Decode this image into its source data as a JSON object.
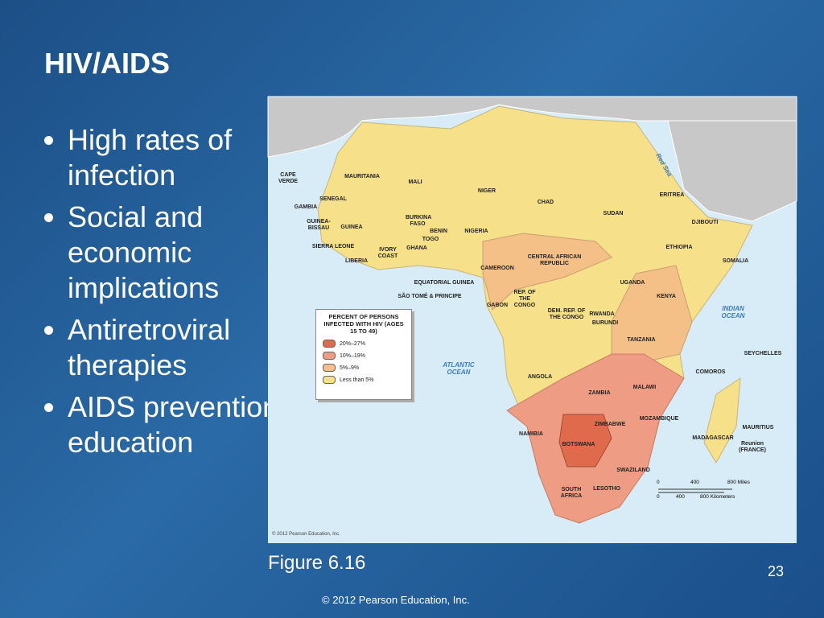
{
  "title": "HIV/AIDS",
  "bullets": [
    "High rates of infection",
    "Social and economic implications",
    "Antiretroviral therapies",
    "AIDS prevention education"
  ],
  "figure": {
    "labels": [
      "CAPE VERDE",
      "MAURITANIA",
      "MALI",
      "NIGER",
      "CHAD",
      "SUDAN",
      "ERITREA",
      "DJIBOUTI",
      "SENEGAL",
      "GAMBIA",
      "GUINEA-BISSAU",
      "GUINEA",
      "SIERRA LEONE",
      "LIBERIA",
      "IVORY COAST",
      "BURKINA FASO",
      "BENIN",
      "TOGO",
      "GHANA",
      "NIGERIA",
      "CAMEROON",
      "CENTRAL AFRICAN REPUBLIC",
      "ETHIOPIA",
      "SOMALIA",
      "EQUATORIAL GUINEA",
      "SÃO TOMÉ & PRINCIPE",
      "GABON",
      "REP. OF THE CONGO",
      "DEM. REP. OF THE CONGO",
      "UGANDA",
      "KENYA",
      "RWANDA",
      "BURUNDI",
      "TANZANIA",
      "ANGOLA",
      "ZAMBIA",
      "MALAWI",
      "MOZAMBIQUE",
      "ZIMBABWE",
      "NAMIBIA",
      "BOTSWANA",
      "MADAGASCAR",
      "MAURITIUS",
      "Reunion (FRANCE)",
      "SWAZILAND",
      "SOUTH AFRICA",
      "LESOTHO",
      "COMOROS",
      "SEYCHELLES"
    ],
    "water": [
      "INDIAN OCEAN",
      "ATLANTIC OCEAN",
      "Red Sea"
    ],
    "legend": {
      "title": "PERCENT OF PERSONS INFECTED WITH HIV (AGES 15 TO 49)",
      "items": [
        "20%–27%",
        "10%–19%",
        "5%–9%",
        "Less than 5%"
      ]
    },
    "scale": {
      "miles": [
        "0",
        "400",
        "800 Miles"
      ],
      "kilometers": [
        "0",
        "400",
        "800 Kilometers"
      ]
    },
    "credit": "© 2012 Pearson Education, Inc."
  },
  "caption": "Figure 6.16",
  "page_number": "23",
  "footer": "© 2012 Pearson Education, Inc."
}
